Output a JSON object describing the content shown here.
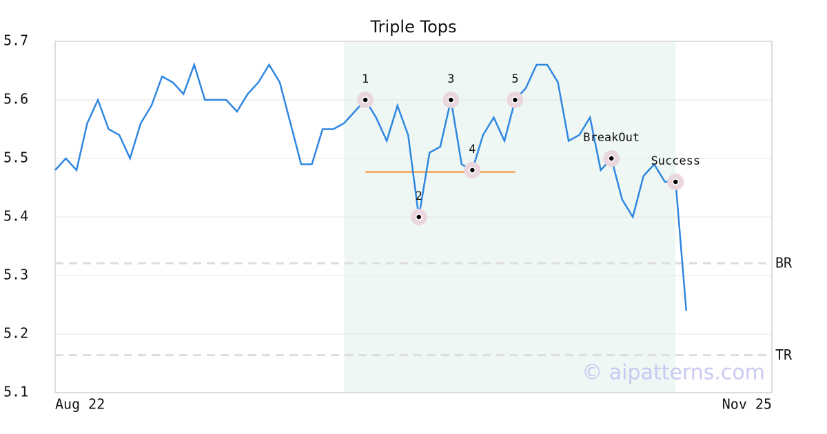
{
  "chart_data": {
    "type": "line",
    "title": "Triple Tops",
    "x": [
      0,
      1,
      2,
      3,
      4,
      5,
      6,
      7,
      8,
      9,
      10,
      11,
      12,
      13,
      14,
      15,
      16,
      17,
      18,
      19,
      20,
      21,
      22,
      23,
      24,
      25,
      26,
      27,
      28,
      29,
      30,
      31,
      32,
      33,
      34,
      35,
      36,
      37,
      38,
      39,
      40,
      41,
      42,
      43,
      44,
      45,
      46,
      47,
      48,
      49,
      50,
      51,
      52,
      53,
      54,
      55,
      56,
      57,
      58,
      59
    ],
    "series": [
      {
        "color": "#2f86e0",
        "values": [
          5.48,
          5.5,
          5.48,
          5.56,
          5.6,
          5.55,
          5.54,
          5.5,
          5.56,
          5.59,
          5.64,
          5.63,
          5.61,
          5.66,
          5.6,
          5.6,
          5.6,
          5.58,
          5.61,
          5.63,
          5.66,
          5.63,
          5.56,
          5.49,
          5.49,
          5.55,
          5.55,
          5.56,
          5.58,
          5.6,
          5.57,
          5.53,
          5.59,
          5.54,
          5.4,
          5.51,
          5.52,
          5.6,
          5.49,
          5.48,
          5.54,
          5.57,
          5.53,
          5.6,
          5.62,
          5.66,
          5.66,
          5.63,
          5.53,
          5.54,
          5.57,
          5.48,
          5.5,
          5.43,
          5.4,
          5.47,
          5.49,
          5.46,
          5.46,
          5.24
        ]
      }
    ],
    "xlim": [
      0,
      67
    ],
    "xticks": [
      {
        "value": 0,
        "label": "Aug 22"
      },
      {
        "value": 67,
        "label": "Nov 25"
      }
    ],
    "ylim": [
      5.1,
      5.7
    ],
    "yticks": [
      5.1,
      5.2,
      5.3,
      5.4,
      5.5,
      5.6,
      5.7
    ],
    "grid": true,
    "shade": [
      27,
      58
    ],
    "support": {
      "x": [
        29,
        43
      ],
      "y": 5.477,
      "color": "#f4a050"
    },
    "annotations": [
      {
        "x": 29,
        "y": 5.6,
        "label": "1"
      },
      {
        "x": 34,
        "y": 5.4,
        "label": "2"
      },
      {
        "x": 37,
        "y": 5.6,
        "label": "3"
      },
      {
        "x": 39,
        "y": 5.48,
        "label": "4"
      },
      {
        "x": 43,
        "y": 5.6,
        "label": "5"
      },
      {
        "x": 52,
        "y": 5.5,
        "label": "BreakOut"
      },
      {
        "x": 58,
        "y": 5.46,
        "label": "Success"
      }
    ],
    "levels": [
      {
        "value": 5.321,
        "label": "BR"
      },
      {
        "value": 5.164,
        "label": "TR"
      }
    ],
    "watermark": "© aipatterns.com"
  }
}
